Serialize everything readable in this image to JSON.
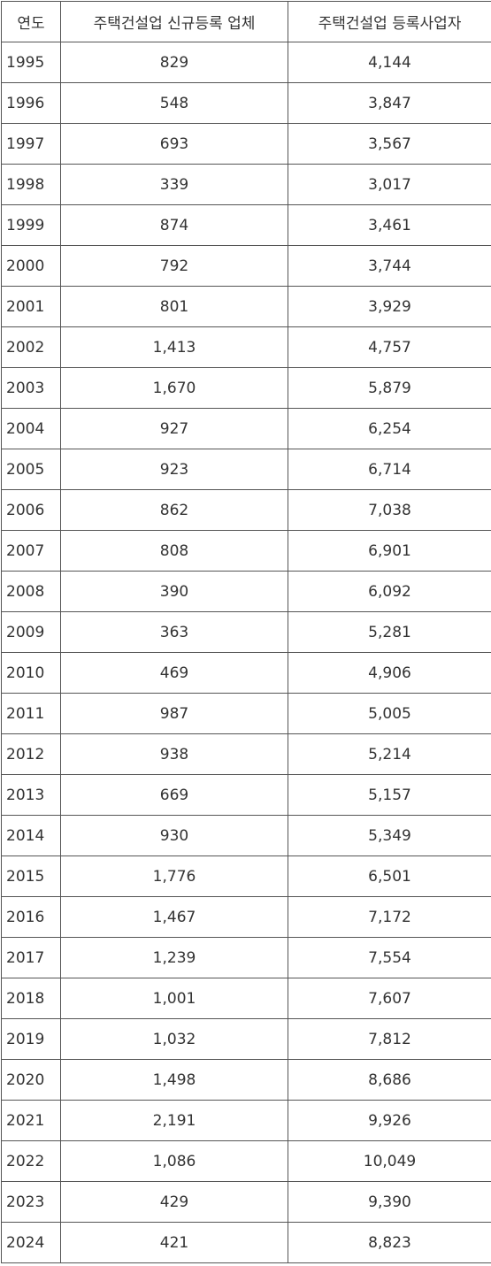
{
  "table": {
    "header": [
      "연도",
      "주택건설업 신규등록 업체",
      "주택건설업 등록사업자"
    ],
    "rows": [
      [
        "1995",
        "829",
        "4,144"
      ],
      [
        "1996",
        "548",
        "3,847"
      ],
      [
        "1997",
        "693",
        "3,567"
      ],
      [
        "1998",
        "339",
        "3,017"
      ],
      [
        "1999",
        "874",
        "3,461"
      ],
      [
        "2000",
        "792",
        "3,744"
      ],
      [
        "2001",
        "801",
        "3,929"
      ],
      [
        "2002",
        "1,413",
        "4,757"
      ],
      [
        "2003",
        "1,670",
        "5,879"
      ],
      [
        "2004",
        "927",
        "6,254"
      ],
      [
        "2005",
        "923",
        "6,714"
      ],
      [
        "2006",
        "862",
        "7,038"
      ],
      [
        "2007",
        "808",
        "6,901"
      ],
      [
        "2008",
        "390",
        "6,092"
      ],
      [
        "2009",
        "363",
        "5,281"
      ],
      [
        "2010",
        "469",
        "4,906"
      ],
      [
        "2011",
        "987",
        "5,005"
      ],
      [
        "2012",
        "938",
        "5,214"
      ],
      [
        "2013",
        "669",
        "5,157"
      ],
      [
        "2014",
        "930",
        "5,349"
      ],
      [
        "2015",
        "1,776",
        "6,501"
      ],
      [
        "2016",
        "1,467",
        "7,172"
      ],
      [
        "2017",
        "1,239",
        "7,554"
      ],
      [
        "2018",
        "1,001",
        "7,607"
      ],
      [
        "2019",
        "1,032",
        "7,812"
      ],
      [
        "2020",
        "1,498",
        "8,686"
      ],
      [
        "2021",
        "2,191",
        "9,926"
      ],
      [
        "2022",
        "1,086",
        "10,049"
      ],
      [
        "2023",
        "429",
        "9,390"
      ],
      [
        "2024",
        "421",
        "8,823"
      ]
    ]
  }
}
